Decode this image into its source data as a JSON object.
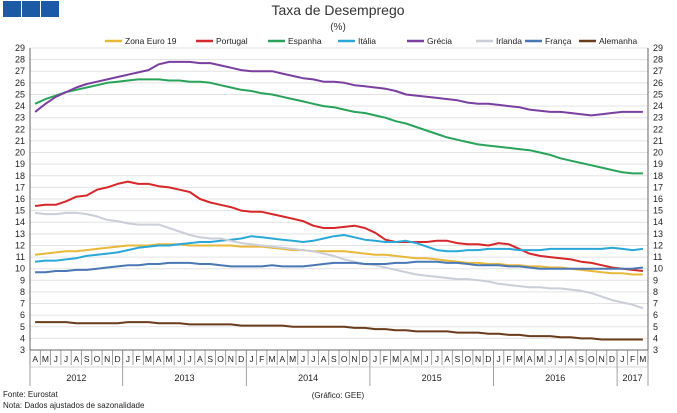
{
  "logo": {
    "color": "#1c5aa5",
    "squares": 3
  },
  "chart_data": {
    "type": "line",
    "title": "Taxa de Desemprego",
    "subtitle": "(%)",
    "ylim": [
      3,
      29
    ],
    "yticks": [
      3,
      4,
      5,
      6,
      7,
      8,
      9,
      10,
      11,
      12,
      13,
      14,
      15,
      16,
      17,
      18,
      19,
      20,
      21,
      22,
      23,
      24,
      25,
      26,
      27,
      28,
      29
    ],
    "grid": true,
    "legend_position": "top",
    "months": [
      "A",
      "M",
      "J",
      "J",
      "A",
      "S",
      "O",
      "N",
      "D",
      "J",
      "F",
      "M",
      "A",
      "M",
      "J",
      "J",
      "A",
      "S",
      "O",
      "N",
      "D",
      "J",
      "F",
      "M",
      "A",
      "M",
      "J",
      "J",
      "A",
      "S",
      "O",
      "N",
      "D",
      "J",
      "F",
      "M",
      "A",
      "M",
      "J",
      "J",
      "A",
      "S",
      "O",
      "N",
      "D",
      "J",
      "F",
      "M",
      "A",
      "M",
      "J",
      "J",
      "A",
      "S",
      "O",
      "N",
      "D",
      "J",
      "F",
      "M"
    ],
    "years": [
      {
        "label": "2012",
        "from": 0,
        "to": 8
      },
      {
        "label": "2013",
        "from": 9,
        "to": 20
      },
      {
        "label": "2014",
        "from": 21,
        "to": 32
      },
      {
        "label": "2015",
        "from": 33,
        "to": 44
      },
      {
        "label": "2016",
        "from": 45,
        "to": 56
      },
      {
        "label": "2017",
        "from": 57,
        "to": 59
      }
    ],
    "series": [
      {
        "name": "Zona Euro 19",
        "color": "#e8b83a",
        "values": [
          11.2,
          11.3,
          11.4,
          11.5,
          11.5,
          11.6,
          11.7,
          11.8,
          11.9,
          12.0,
          12.0,
          12.0,
          12.1,
          12.1,
          12.1,
          12.0,
          12.0,
          12.0,
          12.0,
          12.0,
          11.9,
          11.9,
          11.9,
          11.8,
          11.7,
          11.6,
          11.6,
          11.5,
          11.5,
          11.5,
          11.5,
          11.4,
          11.3,
          11.2,
          11.2,
          11.1,
          11.0,
          10.9,
          10.9,
          10.8,
          10.7,
          10.6,
          10.5,
          10.5,
          10.4,
          10.4,
          10.3,
          10.3,
          10.2,
          10.2,
          10.1,
          10.1,
          10.0,
          9.9,
          9.8,
          9.7,
          9.6,
          9.6,
          9.5,
          9.5
        ]
      },
      {
        "name": "Portugal",
        "color": "#d62828",
        "values": [
          15.4,
          15.5,
          15.5,
          15.8,
          16.2,
          16.3,
          16.8,
          17.0,
          17.3,
          17.5,
          17.3,
          17.3,
          17.1,
          17.0,
          16.8,
          16.6,
          16.0,
          15.7,
          15.5,
          15.3,
          15.0,
          14.9,
          14.9,
          14.7,
          14.5,
          14.3,
          14.1,
          13.7,
          13.5,
          13.5,
          13.6,
          13.7,
          13.5,
          13.1,
          12.5,
          12.3,
          12.3,
          12.3,
          12.3,
          12.4,
          12.4,
          12.2,
          12.1,
          12.1,
          12.0,
          12.2,
          12.1,
          11.7,
          11.3,
          11.1,
          11.0,
          10.9,
          10.8,
          10.6,
          10.5,
          10.3,
          10.1,
          10.0,
          9.9,
          9.8
        ]
      },
      {
        "name": "Espanha",
        "color": "#2aa35a",
        "values": [
          24.2,
          24.6,
          24.9,
          25.2,
          25.4,
          25.6,
          25.8,
          26.0,
          26.1,
          26.2,
          26.3,
          26.3,
          26.3,
          26.2,
          26.2,
          26.1,
          26.1,
          26.0,
          25.8,
          25.6,
          25.4,
          25.3,
          25.1,
          25.0,
          24.8,
          24.6,
          24.4,
          24.2,
          24.0,
          23.9,
          23.7,
          23.5,
          23.4,
          23.2,
          23.0,
          22.7,
          22.5,
          22.2,
          21.9,
          21.6,
          21.3,
          21.1,
          20.9,
          20.7,
          20.6,
          20.5,
          20.4,
          20.3,
          20.2,
          20.0,
          19.8,
          19.5,
          19.3,
          19.1,
          18.9,
          18.7,
          18.5,
          18.3,
          18.2,
          18.2
        ]
      },
      {
        "name": "Itália",
        "color": "#2aa8d8",
        "values": [
          10.6,
          10.7,
          10.7,
          10.8,
          10.9,
          11.1,
          11.2,
          11.3,
          11.4,
          11.6,
          11.8,
          11.9,
          12.0,
          12.0,
          12.1,
          12.2,
          12.3,
          12.3,
          12.4,
          12.5,
          12.6,
          12.8,
          12.7,
          12.6,
          12.5,
          12.4,
          12.3,
          12.4,
          12.6,
          12.8,
          12.9,
          12.7,
          12.5,
          12.4,
          12.3,
          12.3,
          12.4,
          12.2,
          11.9,
          11.6,
          11.5,
          11.5,
          11.6,
          11.6,
          11.7,
          11.7,
          11.7,
          11.6,
          11.6,
          11.6,
          11.7,
          11.7,
          11.7,
          11.7,
          11.7,
          11.7,
          11.8,
          11.7,
          11.6,
          11.7
        ]
      },
      {
        "name": "Grécia",
        "color": "#7b3fa0",
        "values": [
          23.5,
          24.2,
          24.8,
          25.2,
          25.6,
          25.9,
          26.1,
          26.3,
          26.5,
          26.7,
          26.9,
          27.1,
          27.6,
          27.8,
          27.8,
          27.8,
          27.7,
          27.7,
          27.5,
          27.3,
          27.1,
          27.0,
          27.0,
          27.0,
          26.8,
          26.6,
          26.4,
          26.3,
          26.1,
          26.1,
          26.0,
          25.8,
          25.7,
          25.6,
          25.5,
          25.3,
          25.0,
          24.9,
          24.8,
          24.7,
          24.6,
          24.5,
          24.3,
          24.2,
          24.2,
          24.1,
          24.0,
          23.9,
          23.7,
          23.6,
          23.5,
          23.5,
          23.4,
          23.3,
          23.2,
          23.3,
          23.4,
          23.5,
          23.5,
          23.5
        ]
      },
      {
        "name": "Irlanda",
        "color": "#c9ced8",
        "values": [
          14.8,
          14.7,
          14.7,
          14.8,
          14.8,
          14.7,
          14.5,
          14.2,
          14.1,
          13.9,
          13.8,
          13.8,
          13.8,
          13.5,
          13.2,
          12.9,
          12.7,
          12.6,
          12.6,
          12.4,
          12.2,
          12.1,
          12.0,
          11.9,
          11.8,
          11.7,
          11.6,
          11.5,
          11.3,
          11.1,
          10.8,
          10.6,
          10.4,
          10.3,
          10.1,
          9.9,
          9.7,
          9.5,
          9.4,
          9.3,
          9.2,
          9.1,
          9.1,
          9.0,
          8.9,
          8.7,
          8.6,
          8.5,
          8.4,
          8.4,
          8.3,
          8.3,
          8.2,
          8.1,
          7.9,
          7.6,
          7.3,
          7.1,
          6.9,
          6.6
        ]
      },
      {
        "name": "França",
        "color": "#4a78b5",
        "values": [
          9.7,
          9.7,
          9.8,
          9.8,
          9.9,
          9.9,
          10.0,
          10.1,
          10.2,
          10.3,
          10.3,
          10.4,
          10.4,
          10.5,
          10.5,
          10.5,
          10.4,
          10.4,
          10.3,
          10.2,
          10.2,
          10.2,
          10.2,
          10.3,
          10.2,
          10.2,
          10.2,
          10.3,
          10.4,
          10.5,
          10.5,
          10.5,
          10.4,
          10.4,
          10.4,
          10.5,
          10.5,
          10.6,
          10.6,
          10.6,
          10.5,
          10.5,
          10.4,
          10.3,
          10.3,
          10.3,
          10.2,
          10.2,
          10.1,
          10.0,
          10.0,
          10.0,
          10.0,
          10.0,
          10.0,
          10.0,
          10.0,
          10.0,
          10.0,
          10.1
        ]
      },
      {
        "name": "Alemanha",
        "color": "#6b3c1a",
        "values": [
          5.4,
          5.4,
          5.4,
          5.4,
          5.3,
          5.3,
          5.3,
          5.3,
          5.3,
          5.4,
          5.4,
          5.4,
          5.3,
          5.3,
          5.3,
          5.2,
          5.2,
          5.2,
          5.2,
          5.2,
          5.1,
          5.1,
          5.1,
          5.1,
          5.1,
          5.0,
          5.0,
          5.0,
          5.0,
          5.0,
          5.0,
          4.9,
          4.9,
          4.8,
          4.8,
          4.7,
          4.7,
          4.6,
          4.6,
          4.6,
          4.6,
          4.5,
          4.5,
          4.5,
          4.4,
          4.4,
          4.3,
          4.3,
          4.2,
          4.2,
          4.2,
          4.1,
          4.1,
          4.0,
          4.0,
          3.9,
          3.9,
          3.9,
          3.9,
          3.9
        ]
      }
    ]
  },
  "footer": {
    "source": "Fonte: Eurostat",
    "note": "Nota: Dados ajustados de sazonalidade",
    "credit": "(Gráfico: GEE)"
  }
}
